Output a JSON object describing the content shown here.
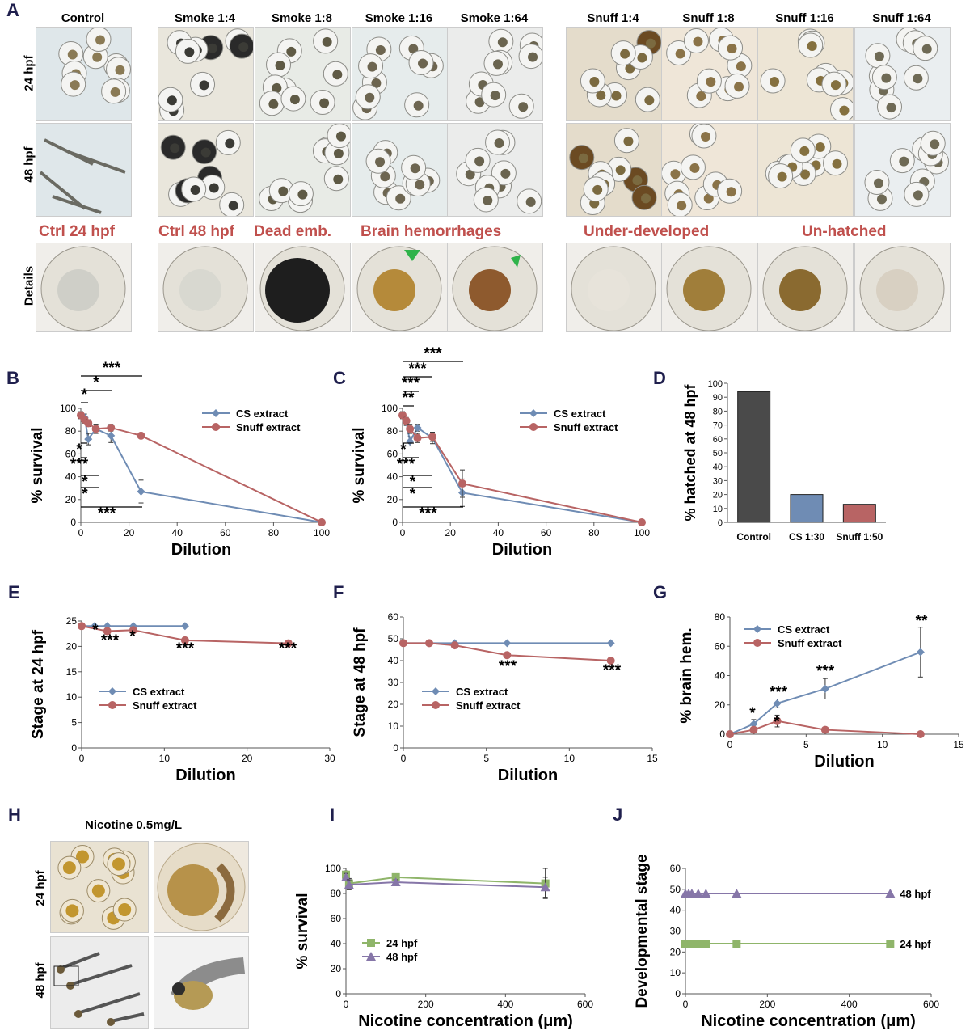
{
  "panelA": {
    "letter": "A",
    "columns": [
      "Control",
      "Smoke 1:4",
      "Smoke 1:8",
      "Smoke 1:16",
      "Smoke 1:64",
      "Snuff 1:4",
      "Snuff 1:8",
      "Snuff 1:16",
      "Snuff 1:64"
    ],
    "rows": [
      "24 hpf",
      "48 hpf",
      "Details"
    ],
    "details": [
      "Ctrl 24 hpf",
      "Ctrl 48 hpf",
      "Dead emb.",
      "Brain hemorrhages",
      "Under-developed",
      "Un-hatched"
    ]
  },
  "panelH": {
    "letter": "H",
    "title": "Nicotine 0.5mg/L",
    "rows": [
      "24 hpf",
      "48 hpf"
    ]
  },
  "colors": {
    "cs": "#6f8cb4",
    "snuff": "#b86464",
    "h24": "#8fb56a",
    "h48": "#8676a8",
    "letter": "#1f1f4d",
    "red_label": "#c0504d",
    "control_bar": "#4a4a4a"
  },
  "chart_data": [
    {
      "id": "B",
      "type": "line",
      "xlabel": "Dilution",
      "ylabel": "% survival",
      "xlim": [
        0,
        100
      ],
      "ylim": [
        0,
        100
      ],
      "xticks": [
        0,
        20,
        40,
        60,
        80,
        100
      ],
      "yticks": [
        0,
        20,
        40,
        60,
        80,
        100
      ],
      "legend": "top-right",
      "series": [
        {
          "name": "CS     extract",
          "color": "#6f8cb4",
          "marker": "diamond",
          "points": [
            [
              0,
              94
            ],
            [
              1.56,
              92
            ],
            [
              3.1,
              73
            ],
            [
              6.25,
              82
            ],
            [
              12.5,
              76
            ],
            [
              25,
              27
            ],
            [
              100,
              0
            ]
          ],
          "err": [
            3,
            3,
            5,
            4,
            6,
            10,
            0
          ]
        },
        {
          "name": "Snuff extract",
          "color": "#b86464",
          "marker": "circle",
          "points": [
            [
              0,
              94
            ],
            [
              1.56,
              90
            ],
            [
              3.1,
              87
            ],
            [
              6.25,
              82
            ],
            [
              12.5,
              83
            ],
            [
              25,
              76
            ],
            [
              100,
              0
            ]
          ],
          "err": [
            3,
            3,
            3,
            4,
            3,
            2,
            0
          ]
        }
      ],
      "annotations_top": [
        "***",
        "*",
        "*"
      ],
      "annotations_bottom": [
        "*",
        "***",
        "*",
        "*",
        "***"
      ]
    },
    {
      "id": "C",
      "type": "line",
      "xlabel": "Dilution",
      "ylabel": "% survival",
      "xlim": [
        0,
        100
      ],
      "ylim": [
        0,
        100
      ],
      "xticks": [
        0,
        20,
        40,
        60,
        80,
        100
      ],
      "yticks": [
        0,
        20,
        40,
        60,
        80,
        100
      ],
      "legend": "top-right",
      "series": [
        {
          "name": "CS     extract",
          "color": "#6f8cb4",
          "marker": "diamond",
          "points": [
            [
              0,
              94
            ],
            [
              1.56,
              88
            ],
            [
              3.1,
              71
            ],
            [
              6.25,
              83
            ],
            [
              12.5,
              74
            ],
            [
              25,
              26
            ],
            [
              100,
              0
            ]
          ],
          "err": [
            3,
            3,
            4,
            3,
            5,
            12,
            0
          ]
        },
        {
          "name": "Snuff extract",
          "color": "#b86464",
          "marker": "circle",
          "points": [
            [
              0,
              94
            ],
            [
              1.56,
              89
            ],
            [
              3.1,
              82
            ],
            [
              6.25,
              74
            ],
            [
              12.5,
              75
            ],
            [
              25,
              34
            ],
            [
              100,
              0
            ]
          ],
          "err": [
            3,
            3,
            4,
            4,
            4,
            12,
            0
          ]
        }
      ],
      "annotations_top": [
        "***",
        "***",
        "***",
        "**"
      ],
      "annotations_bottom": [
        "*",
        "***",
        "*",
        "*",
        "***"
      ]
    },
    {
      "id": "D",
      "type": "bar",
      "ylabel": "% hatched at 48 hpf",
      "ylim": [
        0,
        100
      ],
      "yticks": [
        0,
        10,
        20,
        30,
        40,
        50,
        60,
        70,
        80,
        90,
        100
      ],
      "categories": [
        "Control",
        "CS 1:30",
        "Snuff 1:50"
      ],
      "values": [
        94,
        20,
        13
      ],
      "colors": [
        "#4a4a4a",
        "#6f8cb4",
        "#b86464"
      ]
    },
    {
      "id": "E",
      "type": "line",
      "xlabel": "Dilution",
      "ylabel": "Stage at 24 hpf",
      "xlim": [
        0,
        30
      ],
      "ylim": [
        0,
        25
      ],
      "xticks": [
        0,
        10,
        20,
        30
      ],
      "yticks": [
        0,
        5,
        10,
        15,
        20,
        25
      ],
      "legend": "bottom-left",
      "series": [
        {
          "name": "CS     extract",
          "color": "#6f8cb4",
          "marker": "diamond",
          "points": [
            [
              0,
              24
            ],
            [
              1.56,
              24
            ],
            [
              3.1,
              24
            ],
            [
              6.25,
              24
            ],
            [
              12.5,
              24
            ]
          ]
        },
        {
          "name": "Snuff extract",
          "color": "#b86464",
          "marker": "circle",
          "points": [
            [
              0,
              24
            ],
            [
              3.1,
              23
            ],
            [
              6.25,
              23.2
            ],
            [
              12.5,
              21.2
            ],
            [
              25,
              20.6
            ]
          ]
        }
      ],
      "annotations": [
        "*",
        "***",
        "*",
        "***",
        "***"
      ]
    },
    {
      "id": "F",
      "type": "line",
      "xlabel": "Dilution",
      "ylabel": "Stage at 48 hpf",
      "xlim": [
        0,
        15
      ],
      "ylim": [
        0,
        60
      ],
      "xticks": [
        0,
        5,
        10,
        15
      ],
      "yticks": [
        0,
        10,
        20,
        30,
        40,
        50,
        60
      ],
      "legend": "bottom-left",
      "series": [
        {
          "name": "CS     extract",
          "color": "#6f8cb4",
          "marker": "diamond",
          "points": [
            [
              0,
              48
            ],
            [
              1.56,
              48
            ],
            [
              3.1,
              48
            ],
            [
              6.25,
              48
            ],
            [
              12.5,
              48
            ]
          ]
        },
        {
          "name": "Snuff extract",
          "color": "#b86464",
          "marker": "circle",
          "points": [
            [
              0,
              48
            ],
            [
              1.56,
              48
            ],
            [
              3.1,
              47
            ],
            [
              6.25,
              42.5
            ],
            [
              12.5,
              40
            ]
          ]
        }
      ],
      "annotations": [
        "***",
        "***"
      ]
    },
    {
      "id": "G",
      "type": "line",
      "xlabel": "Dilution",
      "ylabel": "% brain hem.",
      "xlim": [
        0,
        15
      ],
      "ylim": [
        0,
        80
      ],
      "xticks": [
        0,
        5,
        10,
        15
      ],
      "yticks": [
        0,
        20,
        40,
        60,
        80
      ],
      "legend": "top-left",
      "series": [
        {
          "name": "CS     extract",
          "color": "#6f8cb4",
          "marker": "diamond",
          "points": [
            [
              0,
              0
            ],
            [
              1.56,
              7
            ],
            [
              3.1,
              21
            ],
            [
              6.25,
              31
            ],
            [
              12.5,
              56
            ]
          ],
          "err": [
            0,
            3,
            3,
            7,
            17
          ]
        },
        {
          "name": "Snuff extract",
          "color": "#b86464",
          "marker": "circle",
          "points": [
            [
              0,
              0
            ],
            [
              1.56,
              3
            ],
            [
              3.1,
              9
            ],
            [
              6.25,
              3
            ],
            [
              12.5,
              0
            ]
          ],
          "err": [
            0,
            1,
            4,
            1,
            0
          ]
        }
      ],
      "annotations": [
        "*",
        "***",
        "*",
        "***",
        "**"
      ]
    },
    {
      "id": "I",
      "type": "line",
      "xlabel": "Nicotine concentration (μm)",
      "ylabel": "% survival",
      "xlim": [
        0,
        600
      ],
      "ylim": [
        0,
        100
      ],
      "xticks": [
        0,
        200,
        400,
        600
      ],
      "yticks": [
        0,
        20,
        40,
        60,
        80,
        100
      ],
      "legend": "bottom-left",
      "series": [
        {
          "name": "24 hpf",
          "color": "#8fb56a",
          "marker": "square",
          "points": [
            [
              0,
              95
            ],
            [
              7.8,
              88
            ],
            [
              125,
              93
            ],
            [
              500,
              88
            ]
          ],
          "err": [
            3,
            4,
            2,
            12
          ]
        },
        {
          "name": "48 hpf",
          "color": "#8676a8",
          "marker": "triangle",
          "points": [
            [
              0,
              93
            ],
            [
              7.8,
              87
            ],
            [
              125,
              89
            ],
            [
              500,
              85
            ]
          ],
          "err": [
            3,
            4,
            2,
            8
          ]
        }
      ]
    },
    {
      "id": "J",
      "type": "line",
      "xlabel": "Nicotine concentration (μm)",
      "ylabel": "Developmental stage",
      "xlim": [
        0,
        600
      ],
      "ylim": [
        0,
        60
      ],
      "xticks": [
        0,
        200,
        400,
        600
      ],
      "yticks": [
        0,
        10,
        20,
        30,
        40,
        50,
        60
      ],
      "legend": "right",
      "series": [
        {
          "name": "48 hpf",
          "color": "#8676a8",
          "marker": "triangle",
          "points": [
            [
              0,
              48
            ],
            [
              7.8,
              48
            ],
            [
              15.6,
              48
            ],
            [
              31.25,
              48
            ],
            [
              50,
              48
            ],
            [
              125,
              48
            ],
            [
              500,
              48
            ]
          ]
        },
        {
          "name": "24 hpf",
          "color": "#8fb56a",
          "marker": "square",
          "points": [
            [
              0,
              24
            ],
            [
              7.8,
              24
            ],
            [
              15.6,
              24
            ],
            [
              31.25,
              24
            ],
            [
              50,
              24
            ],
            [
              125,
              24
            ],
            [
              500,
              24
            ]
          ]
        }
      ]
    }
  ]
}
